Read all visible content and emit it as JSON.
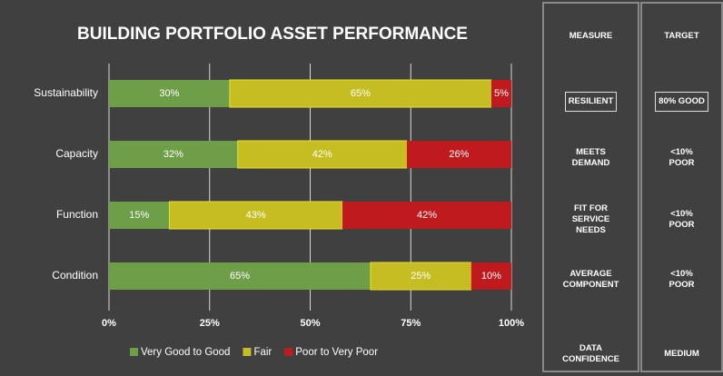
{
  "chart_data": {
    "type": "stacked-barh",
    "title": "BUILDING PORTFOLIO ASSET PERFORMANCE",
    "categories": [
      "Sustainability",
      "Capacity",
      "Function",
      "Condition"
    ],
    "series": [
      {
        "name": "Very Good to Good",
        "color": "#6f9e48",
        "values": [
          30,
          32,
          15,
          65
        ],
        "value_labels": [
          "30%",
          "32%",
          "15%",
          "65%"
        ]
      },
      {
        "name": "Fair",
        "color": "#c5bd22",
        "values": [
          65,
          42,
          43,
          25
        ],
        "value_labels": [
          "65%",
          "42%",
          "43%",
          "25%"
        ]
      },
      {
        "name": "Poor to Very Poor",
        "color": "#bf1a1e",
        "values": [
          5,
          26,
          42,
          10
        ],
        "value_labels": [
          "5%",
          "26%",
          "42%",
          "10%"
        ]
      }
    ],
    "xlim": [
      0,
      100
    ],
    "xticks": [
      {
        "value": 0,
        "label": "0%"
      },
      {
        "value": 25,
        "label": "25%"
      },
      {
        "value": 50,
        "label": "50%"
      },
      {
        "value": 75,
        "label": "75%"
      },
      {
        "value": 100,
        "label": "100%"
      }
    ],
    "grid": true,
    "legend": "bottom"
  },
  "table": {
    "columns": [
      "MEASURE",
      "TARGET"
    ],
    "rows": [
      [
        "RESILIENT",
        "80% GOOD"
      ],
      [
        "MEETS DEMAND",
        "<10% POOR"
      ],
      [
        "FIT FOR SERVICE NEEDS",
        "<10% POOR"
      ],
      [
        "AVERAGE COMPONENT",
        "<10% POOR"
      ],
      [
        "DATA CONFIDENCE",
        "MEDIUM"
      ]
    ]
  }
}
